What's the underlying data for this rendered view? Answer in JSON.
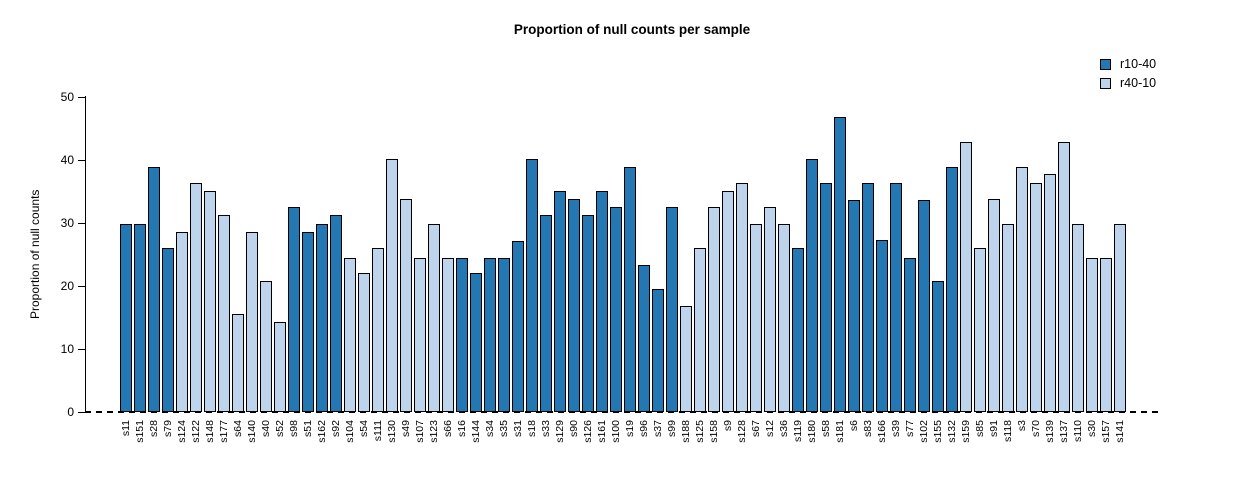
{
  "title": "Proportion of null counts per sample",
  "ylabel": "Proportion of null counts",
  "legend": {
    "items": [
      {
        "label": "r10-40",
        "color": "#2377b2"
      },
      {
        "label": "r40-10",
        "color": "#bed3ec"
      }
    ]
  },
  "chart_data": {
    "type": "bar",
    "title": "Proportion of null counts per sample",
    "xlabel": "",
    "ylabel": "Proportion of null counts",
    "ylim": [
      0,
      50
    ],
    "yticks": [
      0,
      10,
      20,
      30,
      40,
      50
    ],
    "grid": false,
    "legend_position": "top-right",
    "bar_border_color": "#000000",
    "series_colors": {
      "r10-40": "#2377b2",
      "r40-10": "#bed3ec"
    },
    "bars": [
      {
        "label": "s11",
        "value": 29.8,
        "series": "r10-40"
      },
      {
        "label": "s151",
        "value": 29.8,
        "series": "r10-40"
      },
      {
        "label": "s28",
        "value": 38.9,
        "series": "r10-40"
      },
      {
        "label": "s79",
        "value": 26.0,
        "series": "r10-40"
      },
      {
        "label": "s124",
        "value": 28.5,
        "series": "r40-10"
      },
      {
        "label": "s122",
        "value": 36.4,
        "series": "r40-10"
      },
      {
        "label": "s148",
        "value": 35.0,
        "series": "r40-10"
      },
      {
        "label": "s177",
        "value": 31.2,
        "series": "r40-10"
      },
      {
        "label": "s64",
        "value": 15.6,
        "series": "r40-10"
      },
      {
        "label": "s140",
        "value": 28.5,
        "series": "r40-10"
      },
      {
        "label": "s40",
        "value": 20.8,
        "series": "r40-10"
      },
      {
        "label": "s52",
        "value": 14.3,
        "series": "r40-10"
      },
      {
        "label": "s98",
        "value": 32.5,
        "series": "r10-40"
      },
      {
        "label": "s51",
        "value": 28.5,
        "series": "r10-40"
      },
      {
        "label": "s162",
        "value": 29.8,
        "series": "r10-40"
      },
      {
        "label": "s92",
        "value": 31.2,
        "series": "r10-40"
      },
      {
        "label": "s104",
        "value": 24.5,
        "series": "r40-10"
      },
      {
        "label": "s54",
        "value": 22.0,
        "series": "r40-10"
      },
      {
        "label": "s111",
        "value": 26.0,
        "series": "r40-10"
      },
      {
        "label": "s130",
        "value": 40.2,
        "series": "r40-10"
      },
      {
        "label": "s49",
        "value": 33.8,
        "series": "r40-10"
      },
      {
        "label": "s107",
        "value": 24.5,
        "series": "r40-10"
      },
      {
        "label": "s123",
        "value": 29.8,
        "series": "r40-10"
      },
      {
        "label": "s66",
        "value": 24.5,
        "series": "r40-10"
      },
      {
        "label": "s16",
        "value": 24.5,
        "series": "r10-40"
      },
      {
        "label": "s144",
        "value": 22.0,
        "series": "r10-40"
      },
      {
        "label": "s34",
        "value": 24.5,
        "series": "r10-40"
      },
      {
        "label": "s35",
        "value": 24.5,
        "series": "r10-40"
      },
      {
        "label": "s31",
        "value": 27.2,
        "series": "r10-40"
      },
      {
        "label": "s18",
        "value": 40.2,
        "series": "r10-40"
      },
      {
        "label": "s33",
        "value": 31.2,
        "series": "r10-40"
      },
      {
        "label": "s129",
        "value": 35.0,
        "series": "r10-40"
      },
      {
        "label": "s90",
        "value": 33.8,
        "series": "r10-40"
      },
      {
        "label": "s126",
        "value": 31.2,
        "series": "r10-40"
      },
      {
        "label": "s161",
        "value": 35.0,
        "series": "r10-40"
      },
      {
        "label": "s100",
        "value": 32.5,
        "series": "r10-40"
      },
      {
        "label": "s19",
        "value": 38.9,
        "series": "r10-40"
      },
      {
        "label": "s96",
        "value": 23.3,
        "series": "r10-40"
      },
      {
        "label": "s37",
        "value": 19.5,
        "series": "r10-40"
      },
      {
        "label": "s99",
        "value": 32.5,
        "series": "r10-40"
      },
      {
        "label": "s188",
        "value": 16.8,
        "series": "r40-10"
      },
      {
        "label": "s125",
        "value": 26.0,
        "series": "r40-10"
      },
      {
        "label": "s158",
        "value": 32.5,
        "series": "r40-10"
      },
      {
        "label": "s9",
        "value": 35.0,
        "series": "r40-10"
      },
      {
        "label": "s128",
        "value": 36.4,
        "series": "r40-10"
      },
      {
        "label": "s67",
        "value": 29.8,
        "series": "r40-10"
      },
      {
        "label": "s12",
        "value": 32.5,
        "series": "r40-10"
      },
      {
        "label": "s36",
        "value": 29.8,
        "series": "r40-10"
      },
      {
        "label": "s119",
        "value": 26.0,
        "series": "r10-40"
      },
      {
        "label": "s180",
        "value": 40.2,
        "series": "r10-40"
      },
      {
        "label": "s58",
        "value": 36.4,
        "series": "r10-40"
      },
      {
        "label": "s181",
        "value": 46.8,
        "series": "r10-40"
      },
      {
        "label": "s6",
        "value": 33.7,
        "series": "r10-40"
      },
      {
        "label": "s83",
        "value": 36.4,
        "series": "r10-40"
      },
      {
        "label": "s166",
        "value": 27.3,
        "series": "r10-40"
      },
      {
        "label": "s39",
        "value": 36.4,
        "series": "r10-40"
      },
      {
        "label": "s77",
        "value": 24.5,
        "series": "r10-40"
      },
      {
        "label": "s102",
        "value": 33.7,
        "series": "r10-40"
      },
      {
        "label": "s155",
        "value": 20.8,
        "series": "r10-40"
      },
      {
        "label": "s132",
        "value": 38.9,
        "series": "r10-40"
      },
      {
        "label": "s159",
        "value": 42.8,
        "series": "r40-10"
      },
      {
        "label": "s85",
        "value": 26.0,
        "series": "r40-10"
      },
      {
        "label": "s91",
        "value": 33.8,
        "series": "r40-10"
      },
      {
        "label": "s118",
        "value": 29.8,
        "series": "r40-10"
      },
      {
        "label": "s3",
        "value": 38.9,
        "series": "r40-10"
      },
      {
        "label": "s70",
        "value": 36.4,
        "series": "r40-10"
      },
      {
        "label": "s139",
        "value": 37.7,
        "series": "r40-10"
      },
      {
        "label": "s137",
        "value": 42.8,
        "series": "r40-10"
      },
      {
        "label": "s110",
        "value": 29.8,
        "series": "r40-10"
      },
      {
        "label": "s30",
        "value": 24.5,
        "series": "r40-10"
      },
      {
        "label": "s157",
        "value": 24.5,
        "series": "r40-10"
      },
      {
        "label": "s141",
        "value": 29.8,
        "series": "r40-10"
      }
    ]
  }
}
